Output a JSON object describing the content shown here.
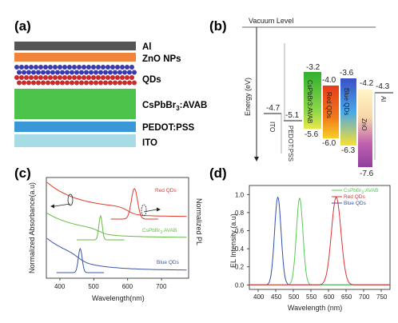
{
  "panel_a": {
    "label": "(a)",
    "layers": [
      {
        "name": "Al",
        "color": "#555555"
      },
      {
        "name": "ZnO NPs",
        "color": "#f0843a"
      },
      {
        "name": "QDs",
        "color": "#4a4ab8"
      },
      {
        "name": "CsPbBr3:AVAB",
        "color": "#4cc44c"
      },
      {
        "name": "PEDOT:PSS",
        "color": "#3b98d8"
      },
      {
        "name": "ITO",
        "color": "#a7dbe6"
      }
    ],
    "qd_row_colors": [
      "#3a3aa8",
      "#cc2a2a"
    ]
  },
  "panel_b": {
    "label": "(b)",
    "vacuum_label": "Vacuum Level",
    "ylabel": "Energy (eV)",
    "levels": {
      "ito": {
        "name": "ITO",
        "value": "-4.7"
      },
      "pedot": {
        "name": "PEDOT:PSS",
        "value": "-5.1"
      },
      "cspbbr3": {
        "name": "CsPbBr3:AVAB",
        "lumo": "-3.2",
        "homo": "-5.6"
      },
      "red": {
        "name": "Red QDs",
        "lumo": "-4.0",
        "homo": "-6.0"
      },
      "blue": {
        "name": "Blue QDs",
        "lumo": "-3.6",
        "homo": "-6.3"
      },
      "zno": {
        "name": "ZnO",
        "lumo": "-4.2",
        "homo": "-7.6"
      },
      "al": {
        "name": "Al",
        "value": "-4.3"
      }
    }
  },
  "panel_c": {
    "label": "(c)",
    "ylabel_left": "Normalized Absorbance(a.u)",
    "ylabel_right": "Normalized PL",
    "xlabel": "Wavelength(nm)",
    "xticks": [
      "400",
      "500",
      "600",
      "700"
    ],
    "legend": [
      {
        "name": "Red QDs",
        "color": "#e23a2a"
      },
      {
        "name": "CsPbBr3:AVAB",
        "color": "#66bb44"
      },
      {
        "name": "Blue QDs",
        "color": "#3a55a8"
      }
    ]
  },
  "panel_d": {
    "label": "(d)",
    "ylabel": "EL Intensity (a.u)",
    "xlabel": "Wavelength (nm)",
    "xticks": [
      "400",
      "450",
      "500",
      "550",
      "600",
      "650",
      "700",
      "750"
    ],
    "yticks": [
      "0.0",
      "0.2",
      "0.4",
      "0.6",
      "0.8",
      "1.0"
    ],
    "legend": [
      {
        "name": "CsPbBr3:AVAB",
        "color": "#55cc55"
      },
      {
        "name": "Red QDs",
        "color": "#e23030"
      },
      {
        "name": "Blue QDs",
        "color": "#3050b0"
      }
    ]
  },
  "chart_data": [
    {
      "type": "line",
      "panel": "c",
      "xlabel": "Wavelength(nm)",
      "xlim": [
        360,
        780
      ],
      "series": [
        {
          "name": "Red QDs",
          "peak_pl_nm": 620
        },
        {
          "name": "CsPbBr3:AVAB",
          "peak_pl_nm": 520
        },
        {
          "name": "Blue QDs",
          "peak_pl_nm": 460
        }
      ]
    },
    {
      "type": "line",
      "panel": "d",
      "xlabel": "Wavelength (nm)",
      "ylabel": "EL Intensity (a.u)",
      "xlim": [
        375,
        775
      ],
      "ylim": [
        -0.05,
        1.1
      ],
      "series": [
        {
          "name": "Blue QDs",
          "peak_nm": 456,
          "peak": 0.97,
          "fwhm_nm": 22
        },
        {
          "name": "CsPbBr3:AVAB",
          "peak_nm": 518,
          "peak": 0.96,
          "fwhm_nm": 22
        },
        {
          "name": "Red QDs",
          "peak_nm": 622,
          "peak": 0.97,
          "fwhm_nm": 32
        }
      ]
    }
  ]
}
